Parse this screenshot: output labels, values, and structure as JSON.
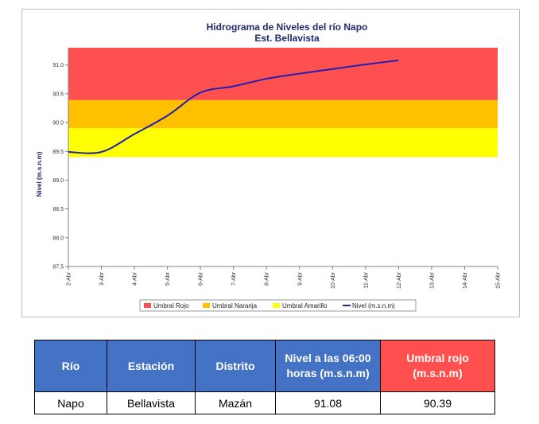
{
  "chart_data": {
    "type": "line",
    "title": "Hidrograma de Niveles del río Napo",
    "subtitle": "Est. Bellavista",
    "xlabel": "",
    "ylabel": "Nivel (m.s.n.m)",
    "ylim": [
      87.5,
      91.3
    ],
    "y_ticks": [
      "87.5",
      "88.0",
      "88.5",
      "89.0",
      "89.5",
      "90.0",
      "90.5",
      "91.0"
    ],
    "y_tick_values": [
      87.5,
      88.0,
      88.5,
      89.0,
      89.5,
      90.0,
      90.5,
      91.0
    ],
    "categories": [
      "2-Abr",
      "3-Abr",
      "4-Abr",
      "5-Abr",
      "6-Abr",
      "7-Abr",
      "8-Abr",
      "9-Abr",
      "10-Abr",
      "11-Abr",
      "12-Abr",
      "13-Abr",
      "14-Abr",
      "15-Abr"
    ],
    "bands": [
      {
        "name": "Umbral Rojo",
        "from": 90.39,
        "to": 91.3,
        "color": "#ff5050"
      },
      {
        "name": "Umbral Naranja",
        "from": 89.9,
        "to": 90.39,
        "color": "#ffc000"
      },
      {
        "name": "Umbral Amarillo",
        "from": 89.4,
        "to": 89.9,
        "color": "#ffff00"
      }
    ],
    "series": [
      {
        "name": "Nivel (m.s.n.m)",
        "color": "#1f1fb0",
        "x": [
          0,
          1,
          2,
          3,
          4,
          5,
          6,
          7,
          8,
          9,
          10
        ],
        "values": [
          89.49,
          89.49,
          89.8,
          90.12,
          90.52,
          90.63,
          90.76,
          90.85,
          90.93,
          91.01,
          91.08
        ]
      }
    ],
    "legend": [
      "Umbral Rojo",
      "Umbral Naranja",
      "Umbral Amarillo",
      "Nivel (m.s.n.m)"
    ],
    "legend_position": "bottom"
  },
  "table": {
    "headers": [
      "Río",
      "Estación",
      "Distrito",
      "Nivel a las 06:00 horas (m.s.n.m)",
      "Umbral rojo (m.s.n.m)"
    ],
    "row": [
      "Napo",
      "Bellavista",
      "Mazán",
      "91.08",
      "90.39"
    ],
    "header_colors": {
      "normal": "#4472c4",
      "alert": "#ff4f4f"
    }
  }
}
